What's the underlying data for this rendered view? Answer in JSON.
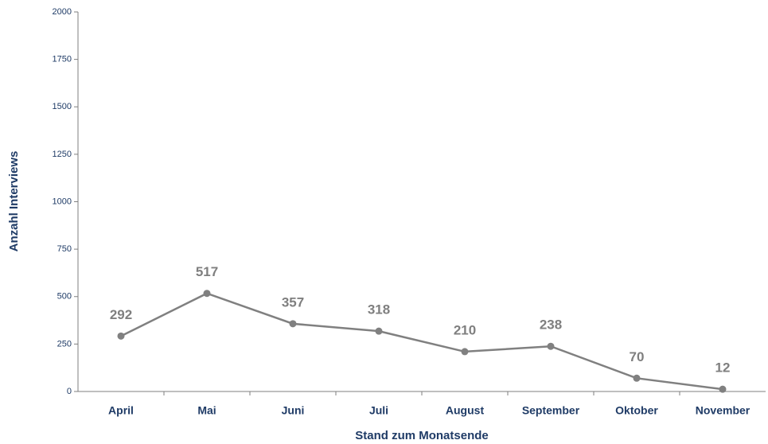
{
  "chart_data": {
    "type": "line",
    "x_label": "Stand zum Monatsende",
    "y_label": "Anzahl Interviews",
    "categories": [
      "April",
      "Mai",
      "Juni",
      "Juli",
      "August",
      "September",
      "Oktober",
      "November"
    ],
    "series": [
      {
        "name": "Anzahl Interviews",
        "color": "#808080",
        "values": [
          292,
          517,
          357,
          318,
          210,
          238,
          70,
          12
        ]
      }
    ],
    "ylim": [
      0,
      2000
    ],
    "yticks": [
      0,
      250,
      500,
      750,
      1000,
      1250,
      1500,
      1750,
      2000
    ],
    "grid": false
  }
}
